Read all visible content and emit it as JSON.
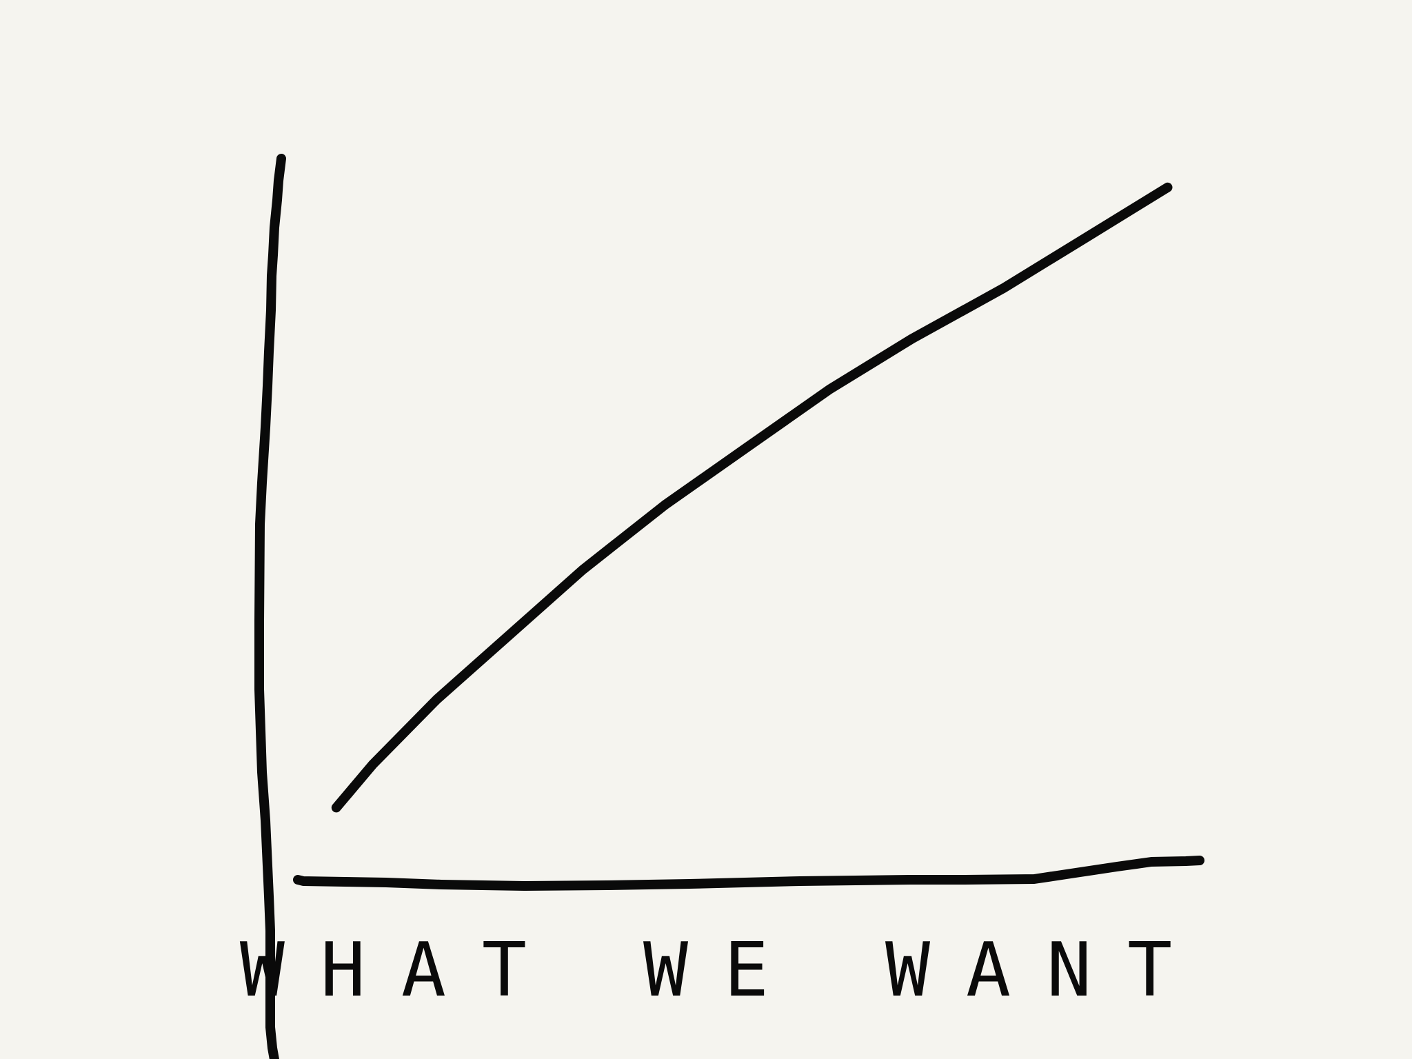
{
  "page": {
    "background": "#f5f4ef",
    "ink_color": "#0a0a0a"
  },
  "chart_data": {
    "type": "line",
    "style": "hand-drawn sketch",
    "title": "WHAT WE WANT",
    "xlabel": "",
    "ylabel": "",
    "grid": false,
    "legend": "none",
    "xlim": [
      0,
      10
    ],
    "ylim": [
      0,
      10
    ],
    "series": [
      {
        "x": [
          0.7,
          1.1,
          1.8,
          2.6,
          3.4,
          4.3,
          5.2,
          6.1,
          7.0,
          8.0,
          8.9,
          9.8
        ],
        "y": [
          1.0,
          1.6,
          2.5,
          3.4,
          4.3,
          5.2,
          6.0,
          6.8,
          7.5,
          8.2,
          8.9,
          9.6
        ]
      }
    ]
  }
}
